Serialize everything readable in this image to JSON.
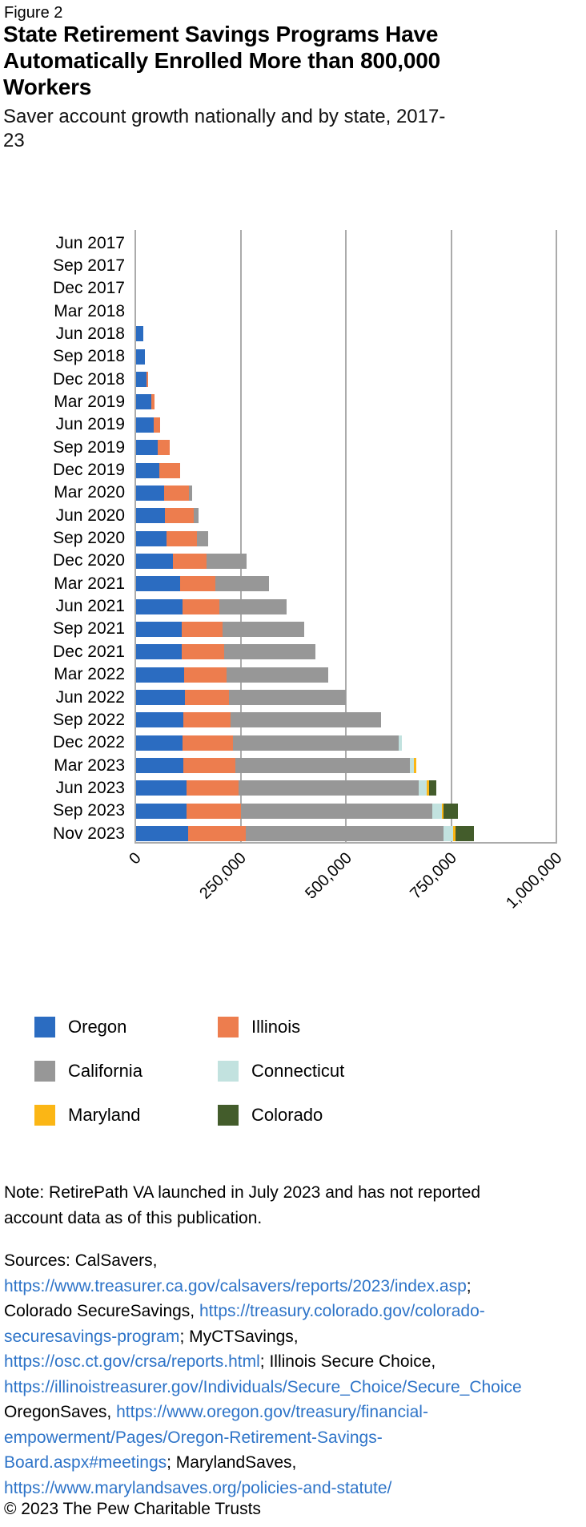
{
  "header": {
    "figure_label": "Figure 2",
    "title": "State Retirement Savings Programs Have Automatically Enrolled More than 800,000 Workers",
    "subtitle": "Saver account growth nationally and by state, 2017-23"
  },
  "chart_data": {
    "type": "bar",
    "orientation": "horizontal",
    "stacked": true,
    "title": "Saver account growth nationally and by state, 2017-23",
    "xlabel": "",
    "ylabel": "",
    "xlim": [
      0,
      1000000
    ],
    "grid": "vertical",
    "legend_position": "bottom",
    "x_ticks": [
      "0",
      "250,000",
      "500,000",
      "750,000",
      "1,000,000"
    ],
    "x_tick_values": [
      0,
      250000,
      500000,
      750000,
      1000000
    ],
    "categories": [
      "Jun 2017",
      "Sep 2017",
      "Dec 2017",
      "Mar 2018",
      "Jun 2018",
      "Sep 2018",
      "Dec 2018",
      "Mar 2019",
      "Jun 2019",
      "Sep 2019",
      "Dec 2019",
      "Mar 2020",
      "Jun 2020",
      "Sep 2020",
      "Dec 2020",
      "Mar 2021",
      "Jun 2021",
      "Sep 2021",
      "Dec 2021",
      "Mar 2022",
      "Jun 2022",
      "Sep 2022",
      "Dec 2022",
      "Mar 2023",
      "Jun 2023",
      "Sep 2023",
      "Nov 2023"
    ],
    "series": [
      {
        "name": "Oregon",
        "color": "#2B6CC1",
        "values": [
          0,
          0,
          0,
          0,
          17000,
          20000,
          24000,
          36000,
          42000,
          51000,
          55000,
          66000,
          68000,
          73000,
          88000,
          104000,
          110000,
          109000,
          109000,
          114000,
          116000,
          113000,
          111000,
          113000,
          119000,
          119000,
          123000
        ]
      },
      {
        "name": "Illinois",
        "color": "#ED7D4E",
        "values": [
          0,
          0,
          0,
          0,
          0,
          0,
          4000,
          8000,
          15000,
          29000,
          49000,
          59000,
          68000,
          71000,
          79000,
          85000,
          88000,
          97000,
          100000,
          101000,
          105000,
          112000,
          120000,
          123000,
          125000,
          131000,
          138000
        ]
      },
      {
        "name": "California",
        "color": "#979797",
        "values": [
          0,
          0,
          0,
          0,
          0,
          0,
          0,
          0,
          0,
          0,
          0,
          8000,
          12000,
          28000,
          96000,
          127000,
          160000,
          194000,
          217000,
          242000,
          277000,
          357000,
          392000,
          415000,
          427000,
          454000,
          470000
        ]
      },
      {
        "name": "Connecticut",
        "color": "#C2E2DF",
        "values": [
          0,
          0,
          0,
          0,
          0,
          0,
          0,
          0,
          0,
          0,
          0,
          0,
          0,
          0,
          0,
          0,
          0,
          0,
          0,
          0,
          0,
          0,
          9000,
          9000,
          20000,
          22000,
          22000
        ]
      },
      {
        "name": "Maryland",
        "color": "#FBB615",
        "values": [
          0,
          0,
          0,
          0,
          0,
          0,
          0,
          0,
          0,
          0,
          0,
          0,
          0,
          0,
          0,
          0,
          0,
          0,
          0,
          0,
          0,
          0,
          0,
          5000,
          4000,
          4000,
          5000
        ]
      },
      {
        "name": "Colorado",
        "color": "#435C2B",
        "values": [
          0,
          0,
          0,
          0,
          0,
          0,
          0,
          0,
          0,
          0,
          0,
          0,
          0,
          0,
          0,
          0,
          0,
          0,
          0,
          0,
          0,
          0,
          0,
          0,
          18000,
          34000,
          45000
        ]
      }
    ]
  },
  "legend": {
    "items": [
      {
        "label": "Oregon",
        "color": "#2B6CC1"
      },
      {
        "label": "Illinois",
        "color": "#ED7D4E"
      },
      {
        "label": "California",
        "color": "#979797"
      },
      {
        "label": "Connecticut",
        "color": "#C2E2DF"
      },
      {
        "label": "Maryland",
        "color": "#FBB615"
      },
      {
        "label": "Colorado",
        "color": "#435C2B"
      }
    ]
  },
  "note_lines": [
    "Note: RetirePath VA launched in July 2023 and has not reported",
    "account data as of this publication."
  ],
  "sources_lines": [
    [
      {
        "t": "Sources: CalSavers,",
        "link": false
      }
    ],
    [
      {
        "t": "https://www.treasurer.ca.gov/calsavers/reports/2023/index.asp",
        "link": true
      },
      {
        "t": ";",
        "link": false
      }
    ],
    [
      {
        "t": "Colorado SecureSavings, ",
        "link": false
      },
      {
        "t": "https://treasury.colorado.gov/colorado-",
        "link": true
      }
    ],
    [
      {
        "t": "securesavings-program",
        "link": true
      },
      {
        "t": "; MyCTSavings,",
        "link": false
      }
    ],
    [
      {
        "t": "https://osc.ct.gov/crsa/reports.html",
        "link": true
      },
      {
        "t": "; Illinois Secure Choice,",
        "link": false
      }
    ],
    [
      {
        "t": "https://illinoistreasurer.gov/Individuals/Secure_Choice/Secure_Choice",
        "link": true
      }
    ],
    [
      {
        "t": "OregonSaves, ",
        "link": false
      },
      {
        "t": "https://www.oregon.gov/treasury/financial-",
        "link": true
      }
    ],
    [
      {
        "t": "empowerment/Pages/Oregon-Retirement-Savings-",
        "link": true
      }
    ],
    [
      {
        "t": "Board.aspx#meetings",
        "link": true
      },
      {
        "t": "; MarylandSaves,",
        "link": false
      }
    ],
    [
      {
        "t": "https://www.marylandsaves.org/policies-and-statute/",
        "link": true
      }
    ]
  ],
  "footer": {
    "copyright": "© 2023 The Pew Charitable Trusts"
  },
  "colors": {
    "gridline": "#ABABAB",
    "link": "#2E74C8",
    "text": "#000000"
  }
}
